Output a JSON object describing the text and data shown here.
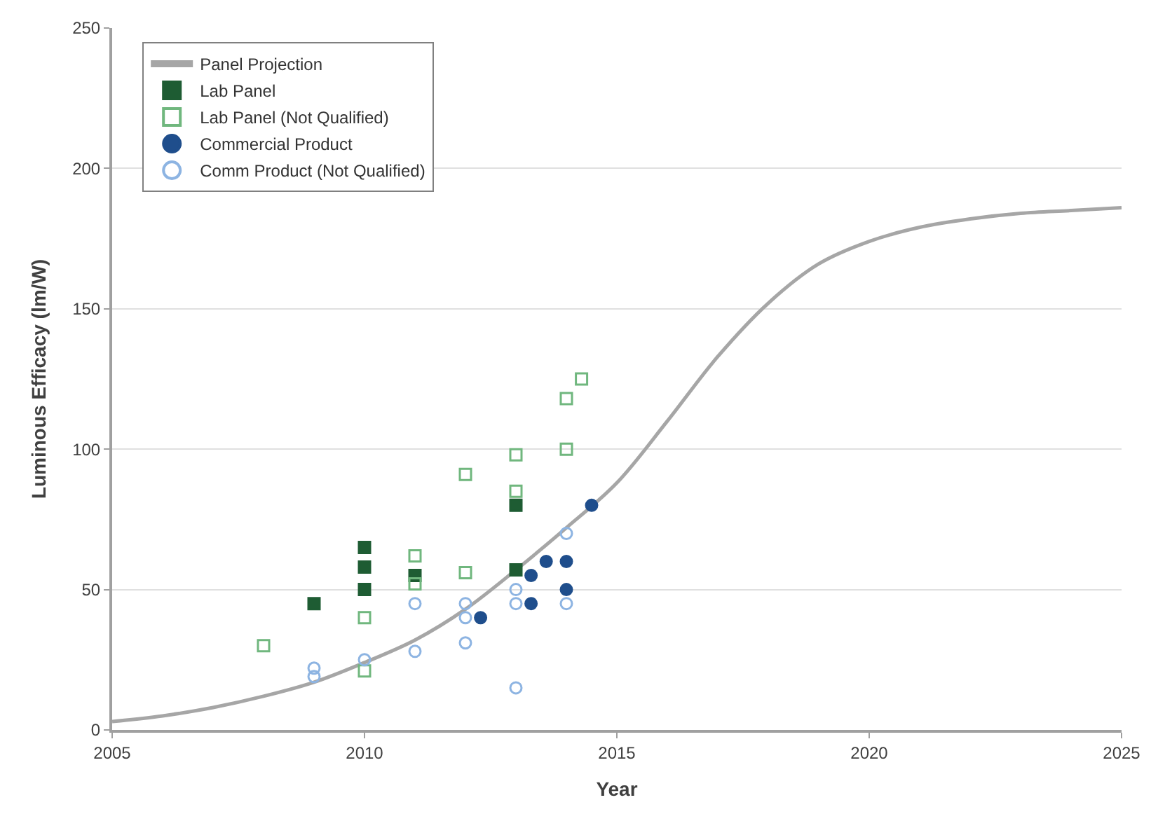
{
  "chart_data": {
    "type": "scatter",
    "xlabel": "Year",
    "ylabel": "Luminous Efficacy (lm/W)",
    "xlim": [
      2005,
      2025
    ],
    "xticks": [
      2005,
      2010,
      2015,
      2020,
      2025
    ],
    "ylim": [
      0,
      250
    ],
    "yticks": [
      0,
      50,
      100,
      150,
      200,
      250
    ],
    "grid": "y",
    "legend": "top left",
    "series": [
      {
        "name": "Panel Projection",
        "type": "line",
        "color": "#a6a6a6",
        "marker": "none",
        "x": [
          2005,
          2006,
          2007,
          2008,
          2009,
          2010,
          2011,
          2012,
          2013,
          2014,
          2015,
          2016,
          2017,
          2018,
          2019,
          2020,
          2021,
          2022,
          2023,
          2024,
          2025
        ],
        "values": [
          3,
          5,
          8,
          12,
          17,
          24,
          32,
          43,
          57,
          72,
          88,
          110,
          133,
          152,
          166,
          174,
          179,
          182,
          184,
          185,
          186
        ]
      },
      {
        "name": "Lab Panel",
        "color": "#1e5c33",
        "marker": "square",
        "x": [
          2009,
          2010,
          2010,
          2010,
          2011,
          2013,
          2013
        ],
        "values": [
          45,
          65,
          58,
          50,
          55,
          80,
          57
        ]
      },
      {
        "name": "Lab Panel (Not Qualified)",
        "color": "#70b77e",
        "marker": "square-open",
        "x": [
          2008,
          2010,
          2010,
          2011,
          2011,
          2012,
          2012,
          2013,
          2013,
          2014,
          2014.3,
          2014
        ],
        "values": [
          30,
          40,
          21,
          62,
          52,
          91,
          56,
          98,
          85,
          118,
          125,
          100
        ]
      },
      {
        "name": "Commercial Product",
        "color": "#1f4e8c",
        "marker": "circle",
        "x": [
          2012.3,
          2013.3,
          2013.3,
          2013.6,
          2014,
          2014,
          2014.5
        ],
        "values": [
          40,
          55,
          45,
          60,
          60,
          50,
          80
        ]
      },
      {
        "name": "Comm Product (Not Qualified)",
        "color": "#8db4e2",
        "marker": "circle-open",
        "x": [
          2009,
          2009,
          2010,
          2011,
          2011,
          2012,
          2012,
          2012,
          2013,
          2013,
          2013,
          2014,
          2014
        ],
        "values": [
          22,
          19,
          25,
          45,
          28,
          45,
          40,
          31,
          50,
          45,
          15,
          70,
          45
        ]
      }
    ]
  }
}
